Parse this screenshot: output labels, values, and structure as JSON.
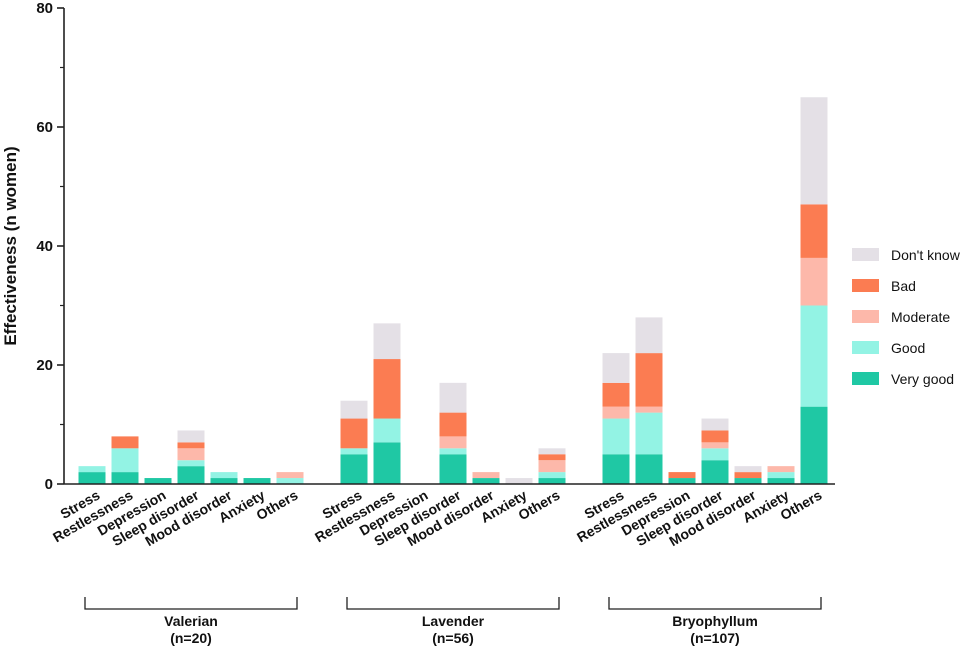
{
  "chart_data": {
    "type": "bar",
    "stacked": true,
    "ylabel": "Effectiveness (n women)",
    "ylim": [
      0,
      80
    ],
    "yticks": [
      0,
      20,
      40,
      60,
      80
    ],
    "categories": [
      "Stress",
      "Restlessness",
      "Depression",
      "Sleep disorder",
      "Mood disorder",
      "Anxiety",
      "Others"
    ],
    "groups": [
      {
        "name": "Valerian",
        "n_label": "(n=20)",
        "bars": [
          [
            2,
            1,
            0,
            0,
            0
          ],
          [
            2,
            4,
            0,
            2,
            0
          ],
          [
            1,
            0,
            0,
            0,
            0
          ],
          [
            3,
            1,
            2,
            1,
            2
          ],
          [
            1,
            1,
            0,
            0,
            0
          ],
          [
            1,
            0,
            0,
            0,
            0
          ],
          [
            0,
            1,
            1,
            0,
            0
          ]
        ]
      },
      {
        "name": "Lavender",
        "n_label": "(n=56)",
        "bars": [
          [
            5,
            1,
            0,
            5,
            3
          ],
          [
            7,
            4,
            0,
            10,
            6
          ],
          [
            0,
            0,
            0,
            0,
            0
          ],
          [
            5,
            1,
            2,
            4,
            5
          ],
          [
            1,
            0,
            1,
            0,
            0
          ],
          [
            0,
            0,
            0,
            0,
            1
          ],
          [
            1,
            1,
            2,
            1,
            1
          ]
        ]
      },
      {
        "name": "Bryophyllum",
        "n_label": "(n=107)",
        "bars": [
          [
            5,
            6,
            2,
            4,
            5
          ],
          [
            5,
            7,
            1,
            9,
            6
          ],
          [
            1,
            0,
            0,
            1,
            0
          ],
          [
            4,
            2,
            1,
            2,
            2
          ],
          [
            1,
            0,
            0,
            1,
            1
          ],
          [
            1,
            1,
            1,
            0,
            0
          ],
          [
            13,
            17,
            8,
            9,
            18
          ]
        ]
      }
    ],
    "series": [
      {
        "name": "Very good",
        "color": "#1fc8a4"
      },
      {
        "name": "Good",
        "color": "#93f3e4"
      },
      {
        "name": "Moderate",
        "color": "#fdb8aa"
      },
      {
        "name": "Bad",
        "color": "#fb7c52"
      },
      {
        "name": "Don't know",
        "color": "#e4e0e6"
      }
    ],
    "legend_order": [
      "Don't know",
      "Bad",
      "Moderate",
      "Good",
      "Very good"
    ],
    "legend_position": "right"
  }
}
